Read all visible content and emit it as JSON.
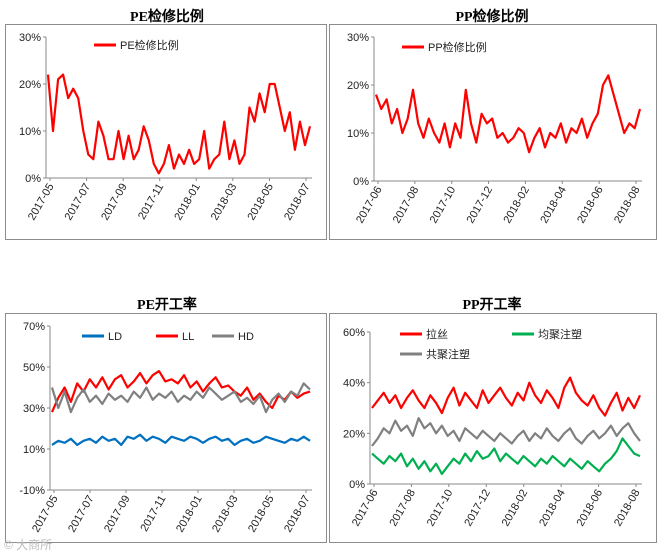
{
  "chart_data": [
    {
      "id": "pe-maint",
      "type": "line",
      "title": "PE检修比例",
      "ylim": [
        0,
        30
      ],
      "yticks": [
        "0%",
        "10%",
        "20%",
        "30%"
      ],
      "xticks": [
        "2017-05",
        "2017-07",
        "2017-09",
        "2017-11",
        "2018-01",
        "2018-03",
        "2018-05",
        "2018-07"
      ],
      "legend": "top-left",
      "grid": false,
      "series": [
        {
          "name": "PE检修比例",
          "color": "#ff0000",
          "values": [
            22,
            10,
            21,
            22,
            17,
            19,
            17,
            10,
            5,
            4,
            12,
            9,
            4,
            4,
            10,
            4,
            9,
            4,
            6,
            11,
            8,
            3,
            1,
            3,
            7,
            2,
            5,
            3,
            6,
            3,
            4,
            10,
            2,
            4,
            5,
            12,
            4,
            8,
            3,
            5,
            15,
            12,
            18,
            14,
            20,
            20,
            15,
            10,
            14,
            6,
            12,
            7,
            11
          ]
        }
      ]
    },
    {
      "id": "pp-maint",
      "type": "line",
      "title": "PP检修比例",
      "ylim": [
        0,
        30
      ],
      "yticks": [
        "0%",
        "10%",
        "20%",
        "30%"
      ],
      "xticks": [
        "2017-06",
        "2017-08",
        "2017-10",
        "2017-12",
        "2018-02",
        "2018-04",
        "2018-06",
        "2018-08"
      ],
      "legend": "top-left",
      "grid": false,
      "series": [
        {
          "name": "PP检修比例",
          "color": "#ff0000",
          "values": [
            18,
            15,
            17,
            12,
            15,
            10,
            13,
            19,
            12,
            9,
            13,
            10,
            8,
            12,
            7,
            12,
            9,
            19,
            12,
            8,
            14,
            12,
            13,
            9,
            10,
            8,
            9,
            11,
            10,
            6,
            9,
            11,
            7,
            10,
            9,
            12,
            8,
            11,
            10,
            13,
            9,
            12,
            14,
            20,
            22,
            18,
            14,
            10,
            12,
            11,
            15
          ]
        }
      ]
    },
    {
      "id": "pe-rate",
      "type": "line",
      "title": "PE开工率",
      "ylim": [
        -10,
        70
      ],
      "yticks": [
        "-10%",
        "10%",
        "30%",
        "50%",
        "70%"
      ],
      "xticks": [
        "2017-05",
        "2017-07",
        "2017-09",
        "2017-11",
        "2018-01",
        "2018-03",
        "2018-05",
        "2018-07"
      ],
      "legend": "top",
      "grid": false,
      "series": [
        {
          "name": "LD",
          "color": "#0070c0",
          "values": [
            12,
            14,
            13,
            15,
            12,
            14,
            15,
            13,
            16,
            14,
            15,
            12,
            16,
            15,
            17,
            14,
            16,
            15,
            13,
            16,
            15,
            14,
            16,
            15,
            13,
            15,
            16,
            14,
            15,
            12,
            14,
            15,
            13,
            14,
            16,
            15,
            14,
            13,
            15,
            14,
            16,
            14
          ]
        },
        {
          "name": "LL",
          "color": "#ff0000",
          "values": [
            28,
            35,
            40,
            33,
            42,
            38,
            44,
            40,
            45,
            39,
            44,
            46,
            40,
            43,
            47,
            42,
            46,
            48,
            43,
            44,
            42,
            46,
            40,
            43,
            38,
            42,
            45,
            40,
            41,
            38,
            36,
            40,
            34,
            37,
            33,
            30,
            36,
            34,
            38,
            35,
            37,
            38
          ]
        },
        {
          "name": "HD",
          "color": "#808080",
          "values": [
            40,
            30,
            38,
            28,
            35,
            39,
            33,
            36,
            32,
            37,
            34,
            36,
            33,
            38,
            35,
            40,
            34,
            37,
            35,
            38,
            33,
            36,
            34,
            38,
            35,
            40,
            37,
            34,
            36,
            38,
            33,
            35,
            32,
            36,
            28,
            34,
            37,
            33,
            38,
            36,
            42,
            39
          ]
        }
      ]
    },
    {
      "id": "pp-rate",
      "type": "line",
      "title": "PP开工率",
      "ylim": [
        0,
        60
      ],
      "yticks": [
        "0%",
        "20%",
        "40%",
        "60%"
      ],
      "xticks": [
        "2017-06",
        "2017-08",
        "2017-10",
        "2017-12",
        "2018-02",
        "2018-04",
        "2018-06",
        "2018-08"
      ],
      "legend": "top",
      "grid": false,
      "series": [
        {
          "name": "拉丝",
          "color": "#ff0000",
          "values": [
            30,
            33,
            36,
            32,
            35,
            30,
            34,
            37,
            33,
            30,
            35,
            32,
            28,
            34,
            38,
            31,
            36,
            33,
            30,
            37,
            32,
            35,
            38,
            34,
            31,
            36,
            33,
            40,
            35,
            32,
            37,
            34,
            30,
            38,
            42,
            36,
            33,
            31,
            35,
            30,
            27,
            32,
            36,
            29,
            34,
            30,
            35
          ]
        },
        {
          "name": "均聚注塑",
          "color": "#00b050",
          "values": [
            12,
            10,
            8,
            11,
            9,
            12,
            7,
            10,
            6,
            9,
            5,
            8,
            4,
            7,
            10,
            8,
            12,
            9,
            13,
            10,
            11,
            14,
            9,
            12,
            10,
            8,
            11,
            9,
            7,
            10,
            8,
            11,
            9,
            7,
            10,
            8,
            6,
            9,
            7,
            5,
            8,
            10,
            13,
            18,
            15,
            12,
            11
          ]
        },
        {
          "name": "共聚注塑",
          "color": "#808080",
          "values": [
            15,
            18,
            22,
            20,
            25,
            21,
            23,
            19,
            26,
            22,
            24,
            20,
            23,
            19,
            21,
            17,
            22,
            20,
            18,
            21,
            19,
            17,
            20,
            18,
            16,
            19,
            21,
            17,
            20,
            18,
            22,
            19,
            17,
            20,
            22,
            18,
            16,
            19,
            21,
            18,
            20,
            23,
            19,
            22,
            24,
            20,
            17
          ]
        }
      ]
    }
  ],
  "watermark": "© 大商所"
}
